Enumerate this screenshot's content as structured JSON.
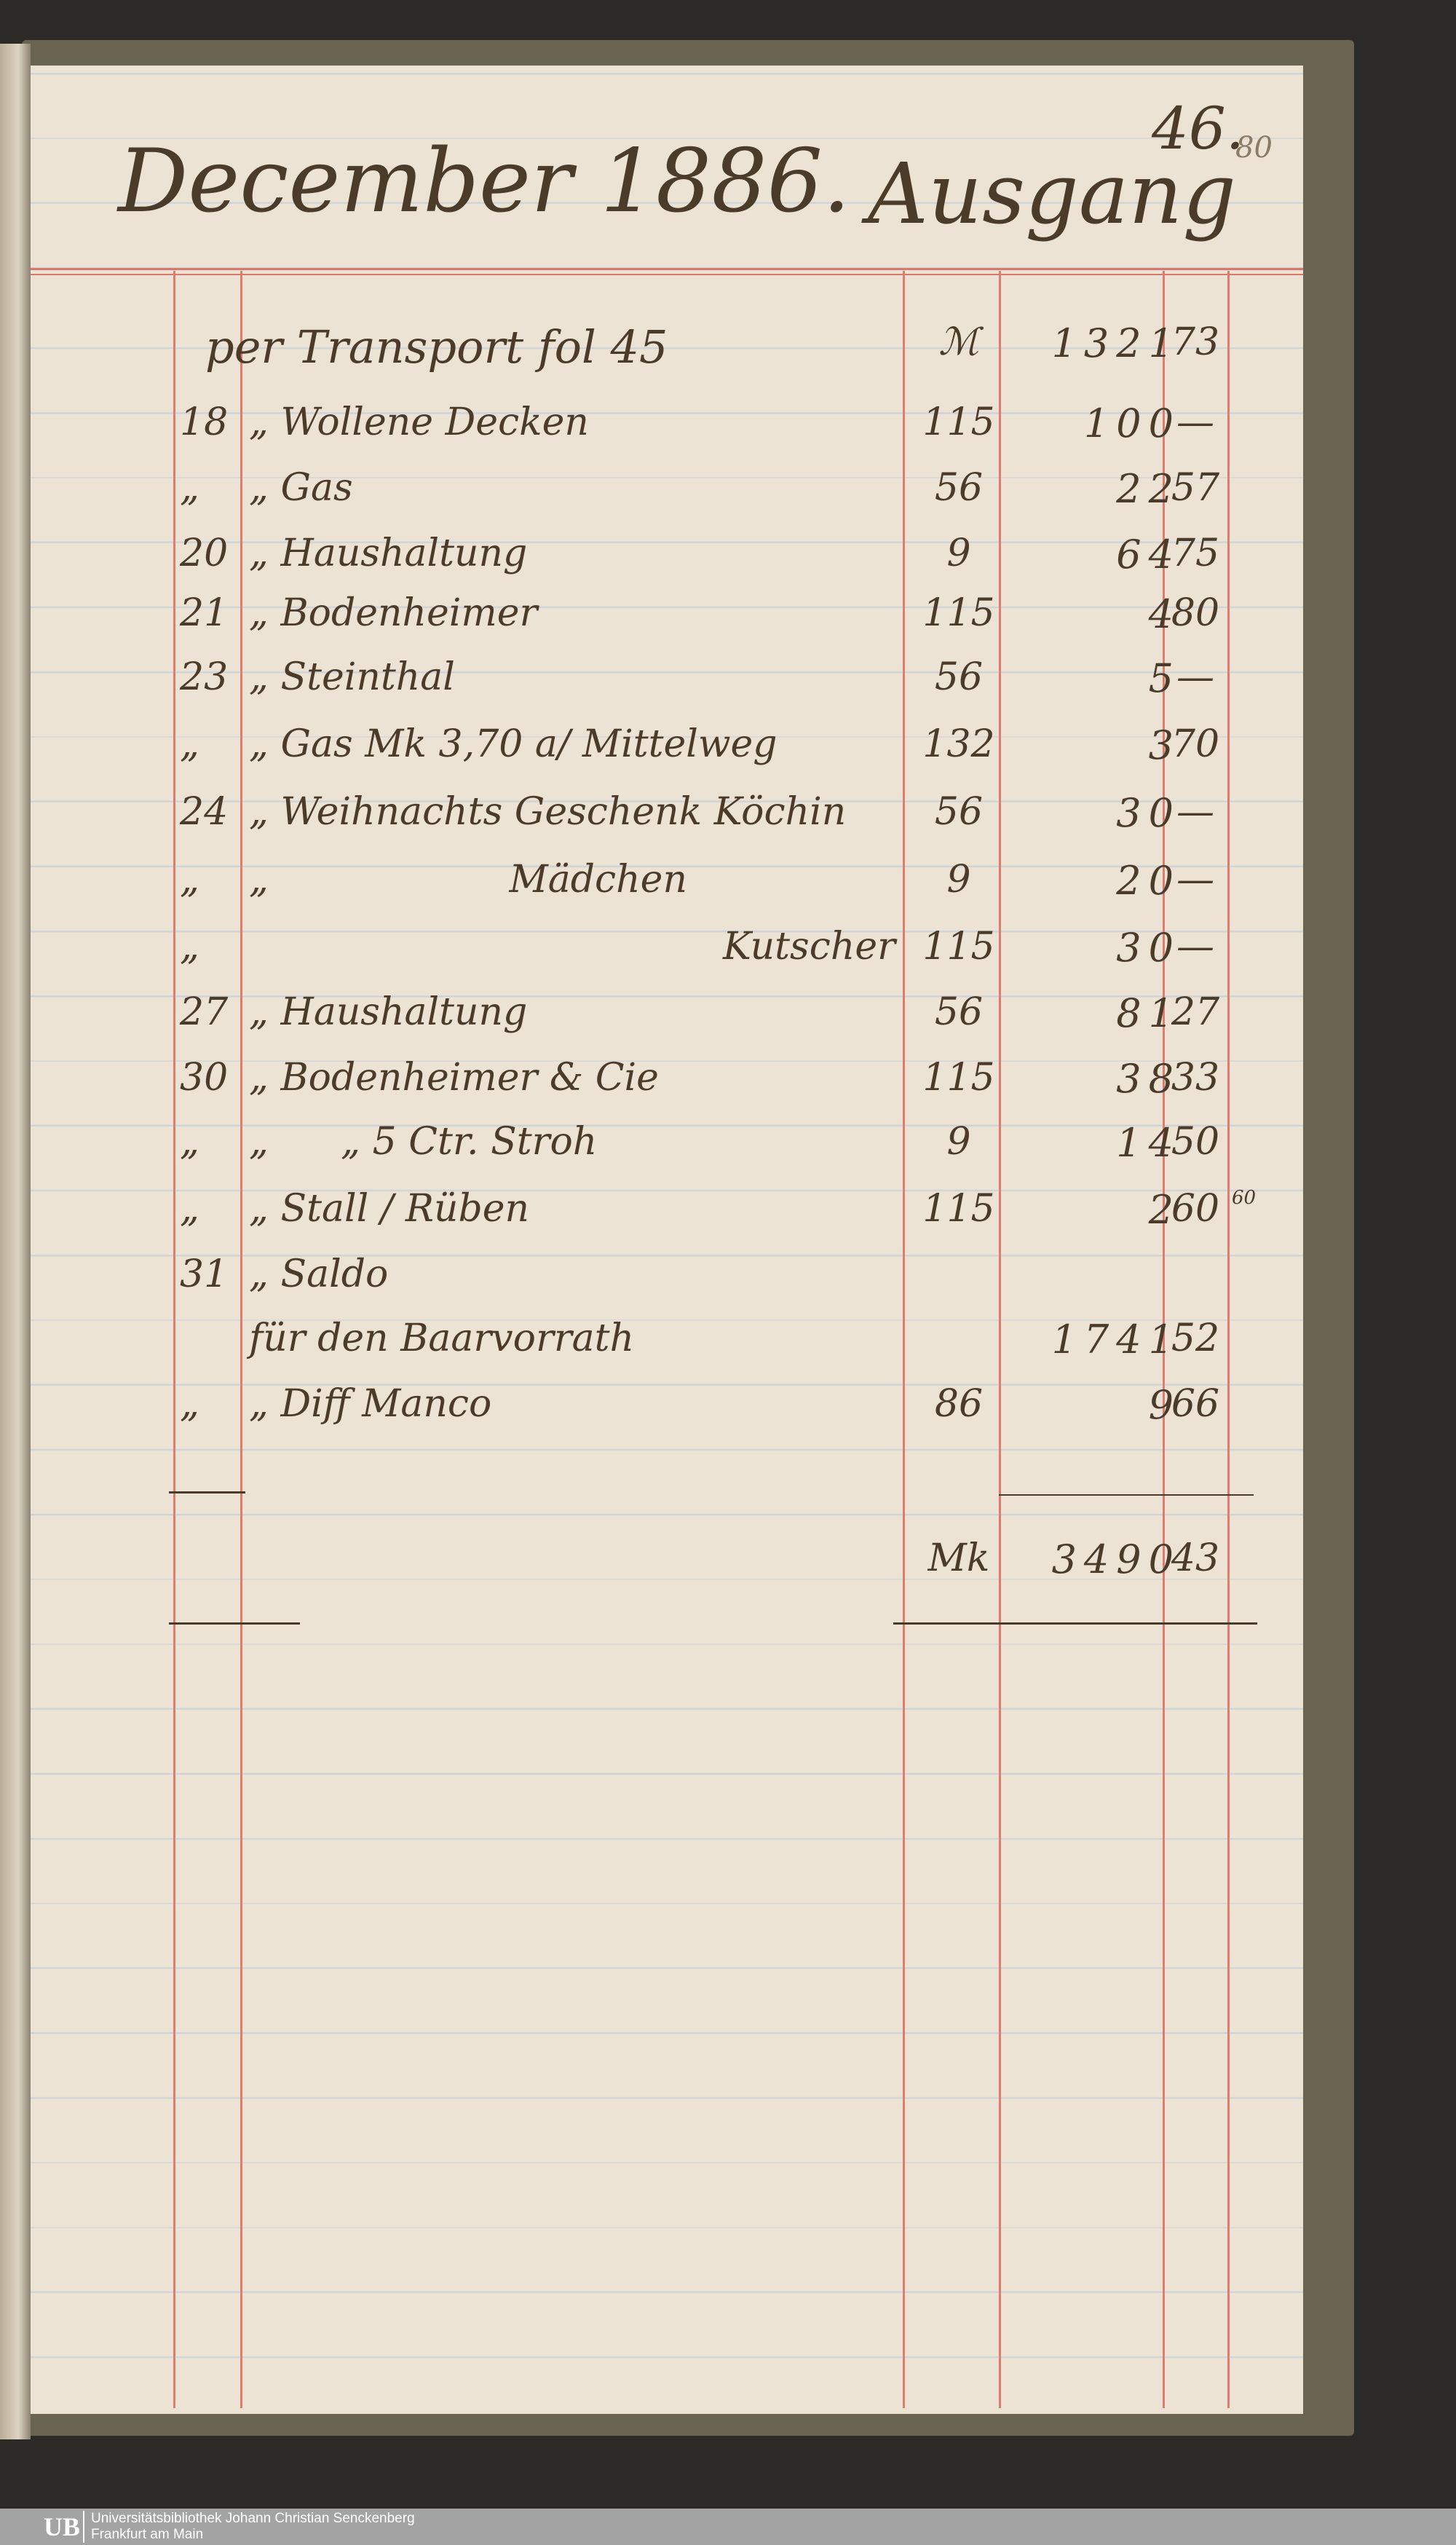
{
  "header": {
    "month_year": "December 1886.",
    "title": "Ausgang",
    "page_number": "46.",
    "page_number_alt": "80"
  },
  "ledger": {
    "rows": [
      {
        "date": "",
        "text": "per Transport fol 45",
        "folio": "ℳ",
        "marks": "1321",
        "pfennig": "73"
      },
      {
        "date": "18",
        "text": "„ Wollene Decken",
        "folio": "115",
        "marks": "100",
        "pfennig": "—"
      },
      {
        "date": "„",
        "text": "„ Gas",
        "folio": "56",
        "marks": "22",
        "pfennig": "57"
      },
      {
        "date": "20",
        "text": "„ Haushaltung",
        "folio": "9",
        "marks": "64",
        "pfennig": "75"
      },
      {
        "date": "21",
        "text": "„ Bodenheimer",
        "folio": "115",
        "marks": "4",
        "pfennig": "80"
      },
      {
        "date": "23",
        "text": "„ Steinthal",
        "folio": "56",
        "marks": "5",
        "pfennig": "—"
      },
      {
        "date": "„",
        "text": "„ Gas Mk 3,70 a/ Mittelweg",
        "folio": "132",
        "marks": "3",
        "pfennig": "70"
      },
      {
        "date": "24",
        "text": "„ Weihnachts Geschenk Köchin",
        "folio": "56",
        "marks": "30",
        "pfennig": "—"
      },
      {
        "date": "„",
        "text": "„                    Mädchen",
        "folio": "9",
        "marks": "20",
        "pfennig": "—"
      },
      {
        "date": "„",
        "text": "Kutscher",
        "folio": "115",
        "marks": "30",
        "pfennig": "—"
      },
      {
        "date": "27",
        "text": "„ Haushaltung",
        "folio": "56",
        "marks": "81",
        "pfennig": "27"
      },
      {
        "date": "30",
        "text": "„ Bodenheimer & Cie",
        "folio": "115",
        "marks": "38",
        "pfennig": "33"
      },
      {
        "date": "„",
        "text": "„      „ 5 Ctr. Stroh",
        "folio": "9",
        "marks": "14",
        "pfennig": "50"
      },
      {
        "date": "„",
        "text": "„ Stall / Rüben",
        "folio": "115",
        "marks": "2",
        "pfennig": "60",
        "note": "60"
      },
      {
        "date": "31",
        "text": "„ Saldo",
        "folio": "",
        "marks": "",
        "pfennig": ""
      },
      {
        "date": "",
        "text": "für den Baarvorrath",
        "folio": "",
        "marks": "1741",
        "pfennig": "52"
      },
      {
        "date": "„",
        "text": "„ Diff Manco",
        "folio": "86",
        "marks": "9",
        "pfennig": "66"
      }
    ],
    "total": {
      "currency": "Mk",
      "marks": "3490",
      "pfennig": "43"
    }
  },
  "footer": {
    "logo": "UB",
    "library": "Universitätsbibliothek Johann Christian Senckenberg",
    "city": "Frankfurt am Main"
  }
}
